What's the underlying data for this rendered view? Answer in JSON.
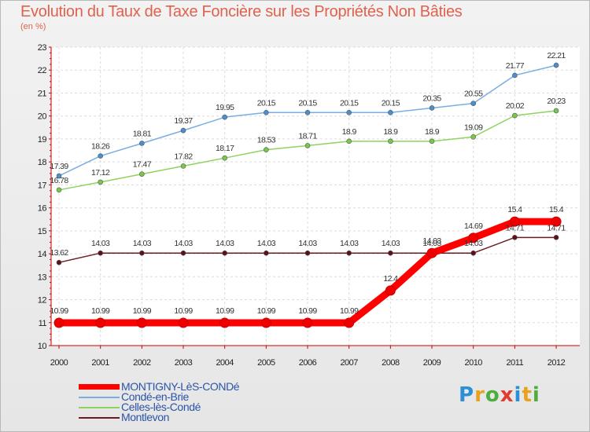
{
  "title": "Evolution du Taux de Taxe Foncière sur les Propriétés Non Bâties",
  "unit_label": "(en %)",
  "logo": {
    "letters": [
      "P",
      "r",
      "o",
      "x",
      "i",
      "t",
      "i"
    ],
    "colors": [
      "#2d8fd6",
      "#e8a21b",
      "#4cae3c",
      "#e23b2f",
      "#2d8fd6",
      "#e8a21b",
      "#4cae3c"
    ]
  },
  "chart_data": {
    "type": "line",
    "title": "Evolution du Taux de Taxe Foncière sur les Propriétés Non Bâties",
    "ylabel": "(en %)",
    "xlabel": "",
    "ylim": [
      10,
      23
    ],
    "yticks": [
      "10",
      "11",
      "12",
      "13",
      "14",
      "15",
      "16",
      "17",
      "18",
      "19",
      "20",
      "21",
      "22",
      "23"
    ],
    "x": [
      "2000",
      "2001",
      "2002",
      "2003",
      "2004",
      "2005",
      "2006",
      "2007",
      "2008",
      "2009",
      "2010",
      "2011",
      "2012"
    ],
    "grid": true,
    "series": [
      {
        "name": "Montlevon",
        "color": "#6b1a1f",
        "marker": "#5a1218",
        "values": [
          13.62,
          14.03,
          14.03,
          14.03,
          14.03,
          14.03,
          14.03,
          14.03,
          14.03,
          14.03,
          14.03,
          14.71,
          14.71
        ],
        "labels": [
          "13.62",
          "14.03",
          "14.03",
          "14.03",
          "14.03",
          "14.03",
          "14.03",
          "14.03",
          "14.03",
          "14.03",
          "14.03",
          "14.71",
          "14.71"
        ]
      },
      {
        "name": "Celles-lès-Condé",
        "color": "#8fd35f",
        "marker": "#79c84a",
        "values": [
          16.78,
          17.12,
          17.47,
          17.82,
          18.17,
          18.53,
          18.71,
          18.9,
          18.9,
          18.9,
          19.09,
          20.02,
          20.23
        ],
        "labels": [
          "16.78",
          "17.12",
          "17.47",
          "17.82",
          "18.17",
          "18.53",
          "18.71",
          "18.9",
          "18.9",
          "18.9",
          "19.09",
          "20.02",
          "20.23"
        ]
      },
      {
        "name": "Condé-en-Brie",
        "color": "#78aee0",
        "marker": "#4a8fd0",
        "values": [
          17.39,
          18.26,
          18.81,
          19.37,
          19.95,
          20.15,
          20.15,
          20.15,
          20.15,
          20.35,
          20.55,
          21.77,
          22.21
        ],
        "labels": [
          "17.39",
          "18.26",
          "18.81",
          "19.37",
          "19.95",
          "20.15",
          "20.15",
          "20.15",
          "20.15",
          "20.35",
          "20.55",
          "21.77",
          "22.21"
        ]
      },
      {
        "name": "MONTIGNY-LèS-CONDé",
        "color": "#ff0000",
        "marker": "#ee0000",
        "values": [
          10.99,
          10.99,
          10.99,
          10.99,
          10.99,
          10.99,
          10.99,
          10.99,
          12.4,
          14.03,
          14.69,
          15.4,
          15.4
        ],
        "labels": [
          "10.99",
          "10.99",
          "10.99",
          "10.99",
          "10.99",
          "10.99",
          "10.99",
          "10.99",
          "12.4",
          "14.03",
          "14.69",
          "15.4",
          "15.4"
        ]
      }
    ],
    "legend": [
      "MONTIGNY-LèS-CONDé",
      "Condé-en-Brie",
      "Celles-lès-Condé",
      "Montlevon"
    ]
  }
}
